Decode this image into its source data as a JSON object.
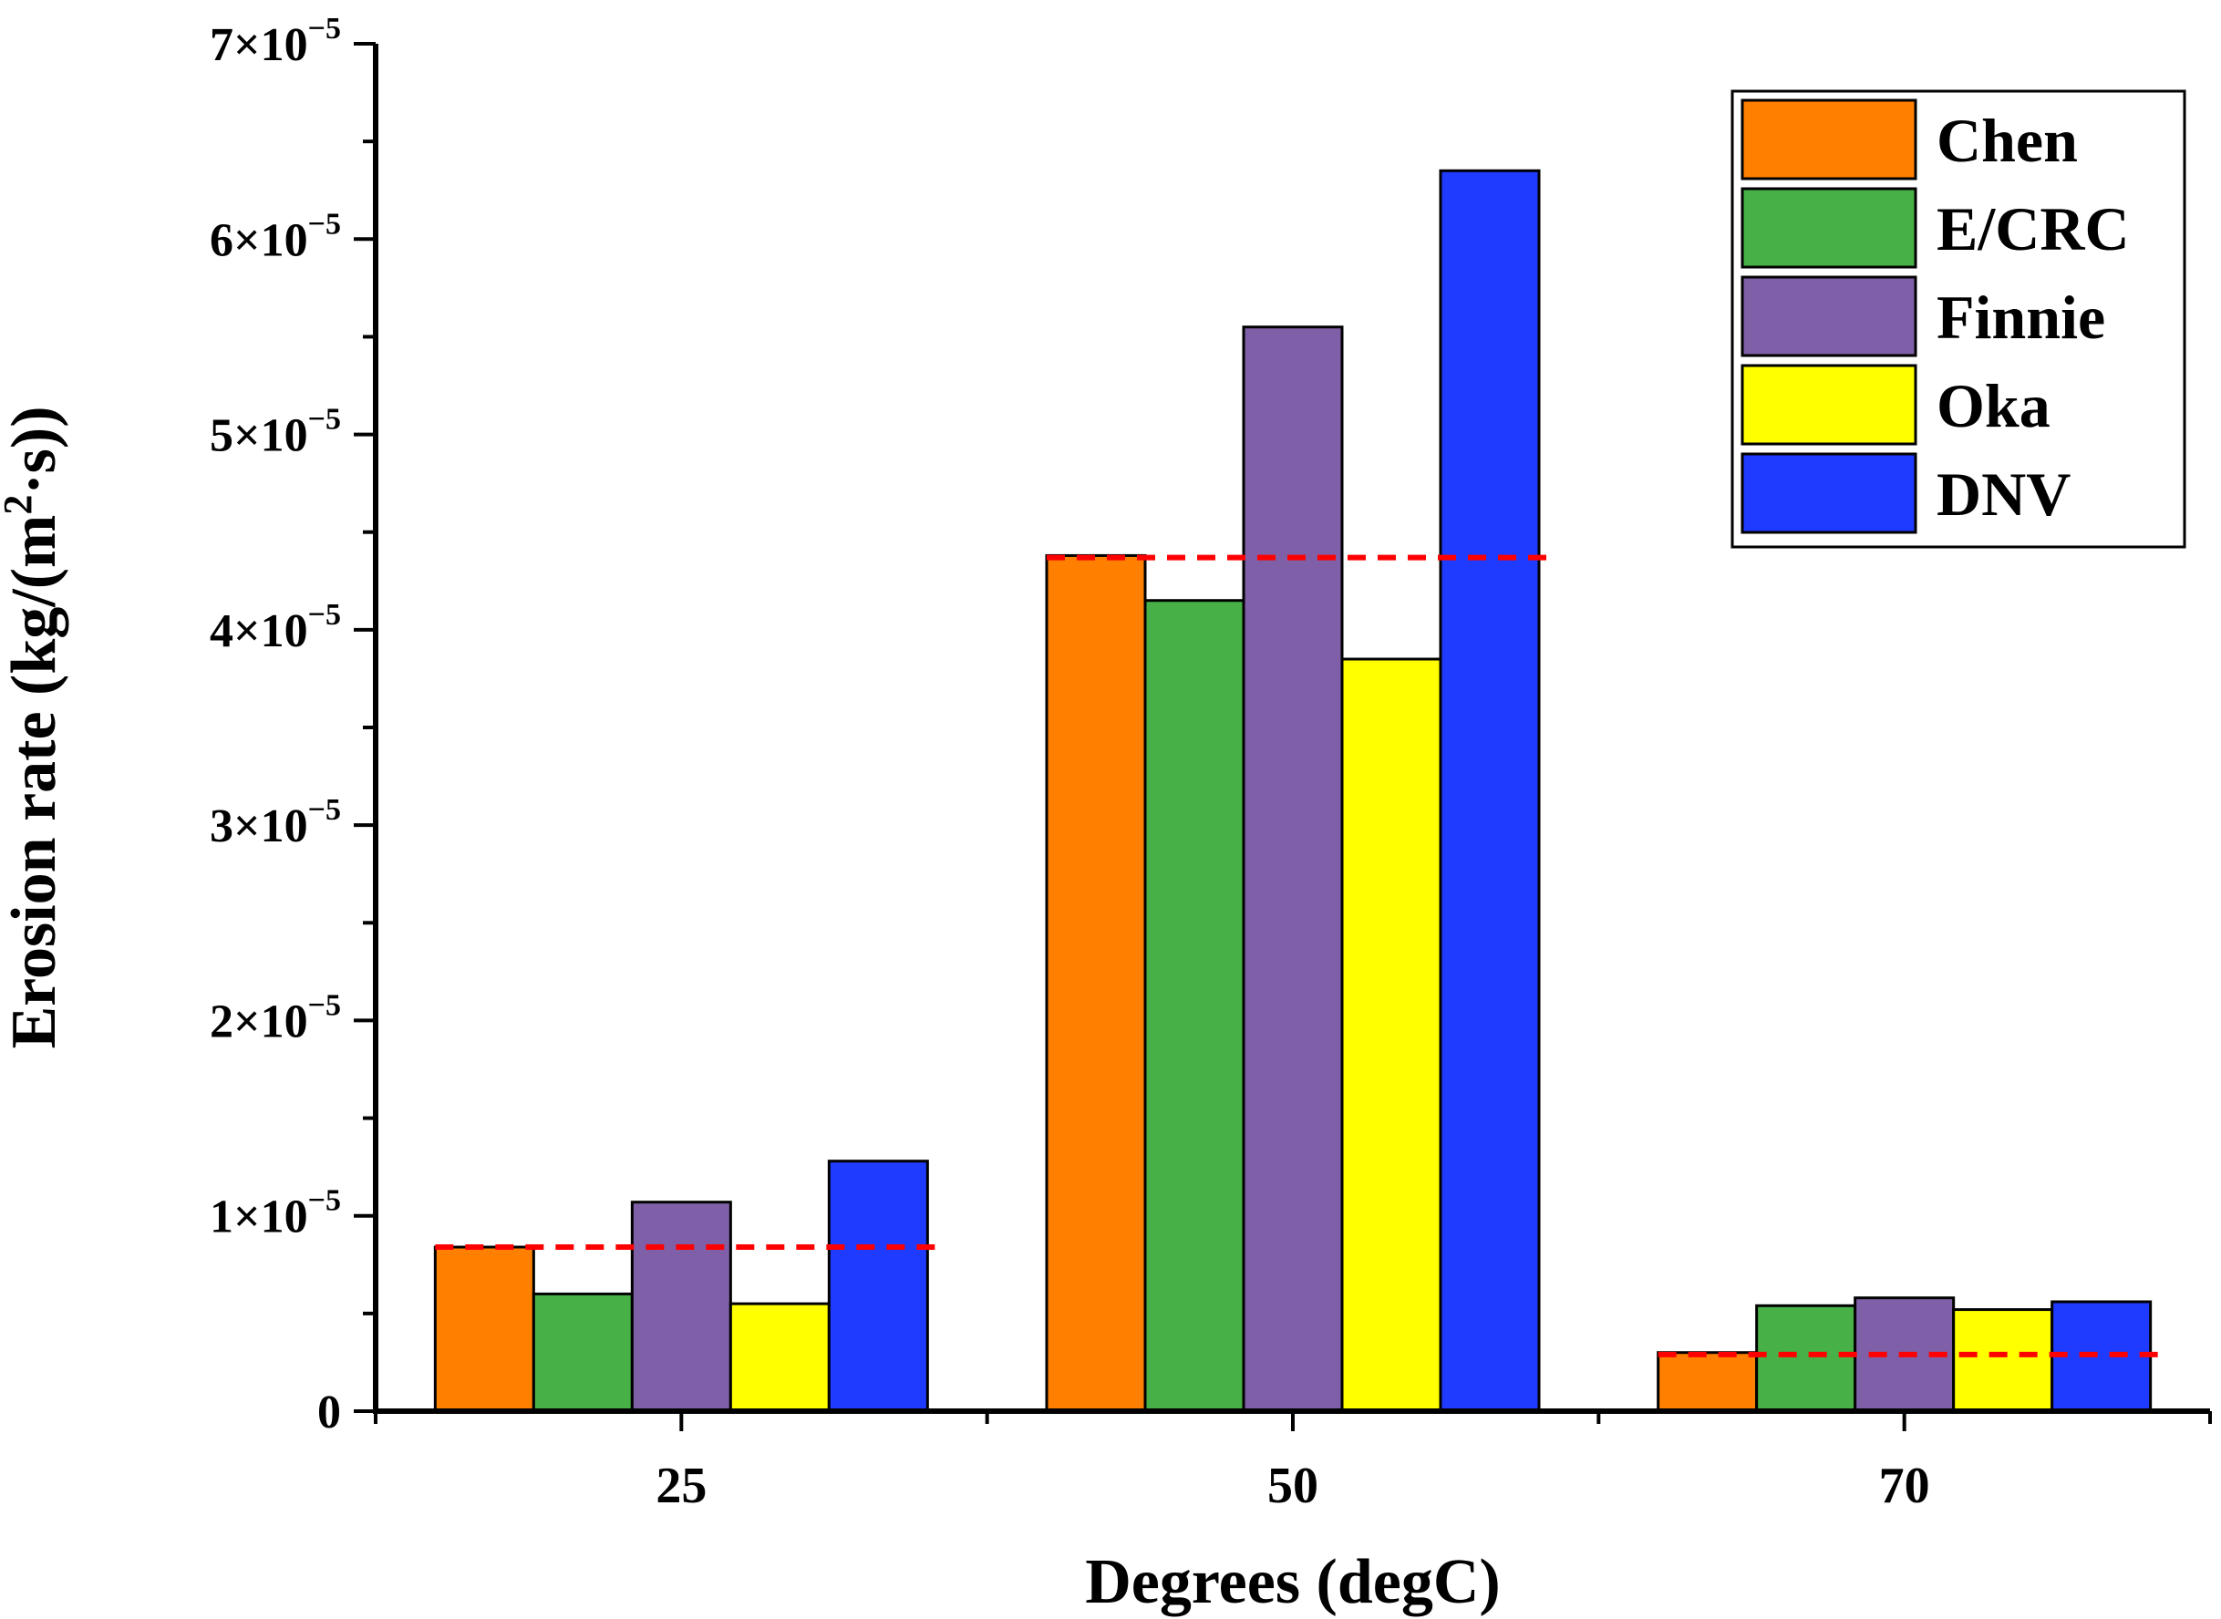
{
  "chart_data": {
    "type": "bar",
    "title": "",
    "xlabel": "Degrees (degC)",
    "ylabel_parts": {
      "main": "Erosion rate (kg/(m",
      "sup": "2",
      "tail": "·s))"
    },
    "categories": [
      "25",
      "50",
      "70"
    ],
    "ylim": [
      0,
      7e-05
    ],
    "yticks": [
      0,
      1e-05,
      2e-05,
      3e-05,
      4e-05,
      5e-05,
      6e-05,
      7e-05
    ],
    "ytick_labels": [
      {
        "base": "0",
        "exp": ""
      },
      {
        "base": "1×10",
        "exp": "−5"
      },
      {
        "base": "2×10",
        "exp": "−5"
      },
      {
        "base": "3×10",
        "exp": "−5"
      },
      {
        "base": "4×10",
        "exp": "−5"
      },
      {
        "base": "5×10",
        "exp": "−5"
      },
      {
        "base": "6×10",
        "exp": "−5"
      },
      {
        "base": "7×10",
        "exp": "−5"
      }
    ],
    "series": [
      {
        "name": "Chen",
        "color": "#ff7f00",
        "values": [
          8.4e-06,
          4.38e-05,
          3e-06
        ]
      },
      {
        "name": "E/CRC",
        "color": "#47b147",
        "values": [
          6e-06,
          4.15e-05,
          5.4e-06
        ]
      },
      {
        "name": "Finnie",
        "color": "#7f60a8",
        "values": [
          1.07e-05,
          5.55e-05,
          5.8e-06
        ]
      },
      {
        "name": "Oka",
        "color": "#ffff00",
        "values": [
          5.5e-06,
          3.85e-05,
          5.2e-06
        ]
      },
      {
        "name": "DNV",
        "color": "#1f3bff",
        "values": [
          1.28e-05,
          6.35e-05,
          5.6e-06
        ]
      }
    ],
    "reference_lines": {
      "color": "#ff0000",
      "style": "dashed",
      "values": [
        8.4e-06,
        4.37e-05,
        2.9e-06
      ]
    },
    "legend_position": "top-right",
    "grid": false
  }
}
